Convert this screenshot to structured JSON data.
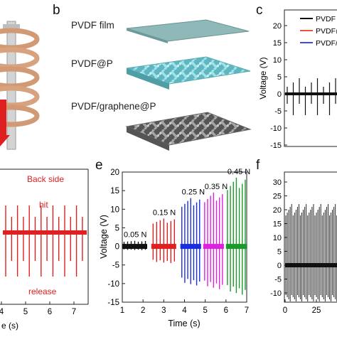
{
  "panels": {
    "b": {
      "letter": "b",
      "labels": [
        "PVDF film",
        "PVDF@P",
        "PVDF/graphene@P"
      ]
    },
    "c": {
      "letter": "c",
      "ylabel": "Voltage (V)",
      "yticks": [
        "20",
        "15",
        "10",
        "5",
        "0",
        "-5",
        "-10",
        "-15"
      ],
      "legend": [
        "PVDF",
        "PVDF@",
        "PVDF/"
      ]
    },
    "d": {
      "annotations": [
        "Back side",
        "hit",
        "release"
      ],
      "xticks": [
        "4",
        "5",
        "6",
        "7"
      ],
      "xlabel": "e (s)"
    },
    "e": {
      "letter": "e"
    },
    "f": {
      "letter": "f",
      "yticks": [
        "30",
        "25",
        "20",
        "15",
        "10",
        "5",
        "0",
        "-5",
        "-10"
      ],
      "xticks": [
        "0",
        "25"
      ]
    }
  },
  "colors": {
    "pvdf": "#111111",
    "pvdf_p": "#e8553a",
    "pvdf_g": "#3a4fd8",
    "red": "#e02020",
    "blue": "#1a2ee0",
    "magenta": "#e020e0",
    "green": "#1a9a2a",
    "film": "#8fb8b8",
    "cyan_mesh": "#7fd4dc",
    "gray_mesh": "#8a8a8a",
    "coil": "#d9a27e"
  },
  "chart_data": [
    {
      "type": "line",
      "panel": "e",
      "xlabel": "Time (s)",
      "ylabel": "Voltage (V)",
      "xlim": [
        1,
        7
      ],
      "ylim": [
        -15,
        20
      ],
      "xticks": [
        1,
        2,
        3,
        4,
        5,
        6,
        7
      ],
      "yticks": [
        -15,
        -10,
        -5,
        0,
        5,
        10,
        15,
        20
      ],
      "series": [
        {
          "name": "0.05 N",
          "x_start": 1.0,
          "x_end": 2.2,
          "max": 1.5,
          "min": -1.0,
          "color": "#111111"
        },
        {
          "name": "0.15 N",
          "x_start": 2.4,
          "x_end": 3.6,
          "max": 7.5,
          "min": -4.5,
          "color": "#e02020"
        },
        {
          "name": "0.25 N",
          "x_start": 3.8,
          "x_end": 4.8,
          "max": 13.0,
          "min": -10.5,
          "color": "#1a2ee0"
        },
        {
          "name": "0.35 N",
          "x_start": 4.9,
          "x_end": 5.9,
          "max": 14.5,
          "min": -11.5,
          "color": "#e020e0"
        },
        {
          "name": "0.45 N",
          "x_start": 6.0,
          "x_end": 7.0,
          "max": 18.5,
          "min": -13.0,
          "color": "#1a9a2a"
        }
      ]
    }
  ]
}
